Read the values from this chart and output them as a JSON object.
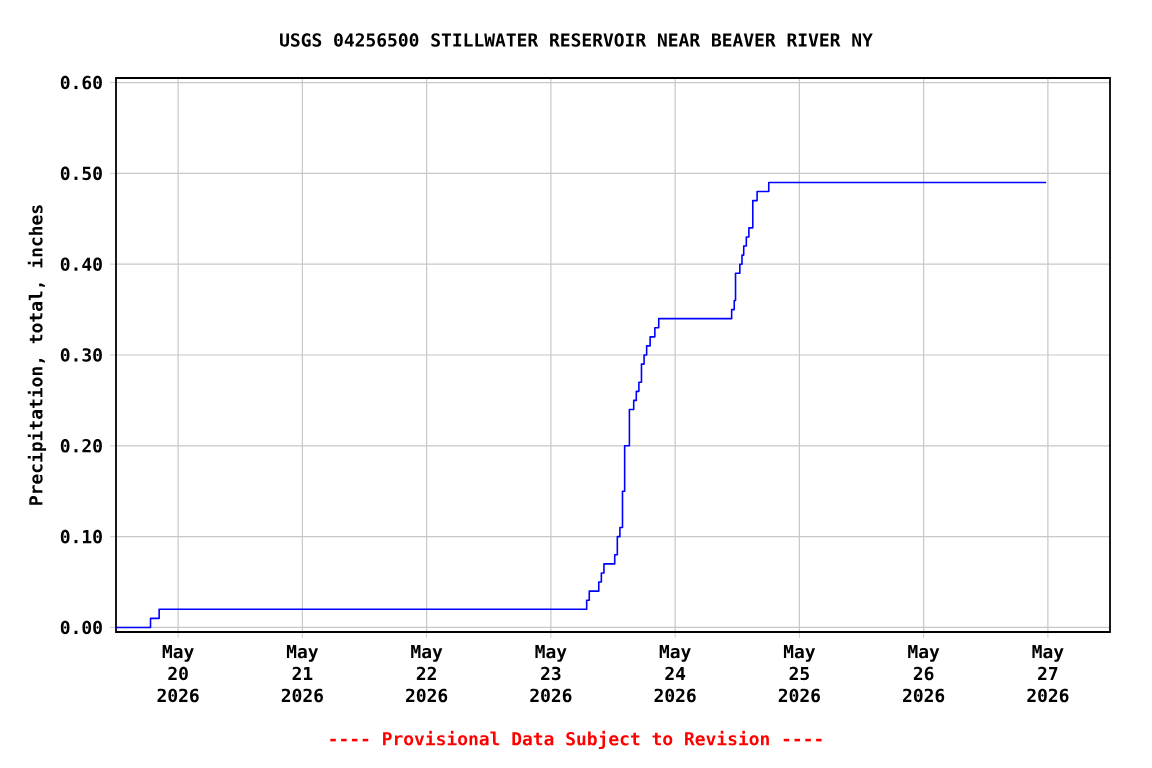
{
  "chart_data": {
    "type": "step",
    "title": "USGS 04256500 STILLWATER RESERVOIR NEAR BEAVER RIVER NY",
    "ylabel": "Precipitation, total, inches",
    "annotations": [
      "---- Provisional Data Subject to Revision ----"
    ],
    "x": [
      "2026-05-19T12:00",
      "2026-05-19T18:40",
      "2026-05-19T20:20",
      "2026-05-23T06:55",
      "2026-05-23T07:25",
      "2026-05-23T08:10",
      "2026-05-23T09:15",
      "2026-05-23T09:45",
      "2026-05-23T10:15",
      "2026-05-23T12:20",
      "2026-05-23T12:50",
      "2026-05-23T13:20",
      "2026-05-23T13:50",
      "2026-05-23T14:15",
      "2026-05-23T15:10",
      "2026-05-23T16:00",
      "2026-05-23T16:30",
      "2026-05-23T17:00",
      "2026-05-23T17:30",
      "2026-05-23T18:00",
      "2026-05-23T18:30",
      "2026-05-23T19:10",
      "2026-05-23T20:05",
      "2026-05-23T20:50",
      "2026-05-24T10:55",
      "2026-05-24T11:25",
      "2026-05-24T11:40",
      "2026-05-24T12:30",
      "2026-05-24T12:55",
      "2026-05-24T13:15",
      "2026-05-24T13:45",
      "2026-05-24T14:15",
      "2026-05-24T15:00",
      "2026-05-24T15:50",
      "2026-05-24T18:05",
      "2026-05-26T23:40"
    ],
    "series": [
      {
        "color": "#0000ff",
        "values": [
          0.0,
          0.01,
          0.02,
          0.03,
          0.04,
          0.04,
          0.05,
          0.06,
          0.07,
          0.08,
          0.1,
          0.11,
          0.15,
          0.2,
          0.24,
          0.25,
          0.26,
          0.27,
          0.29,
          0.3,
          0.31,
          0.32,
          0.33,
          0.34,
          0.35,
          0.36,
          0.39,
          0.4,
          0.41,
          0.42,
          0.43,
          0.44,
          0.47,
          0.48,
          0.49,
          0.49
        ]
      }
    ],
    "xlim": [
      "2026-05-19T12:00",
      "2026-05-27T12:00"
    ],
    "xticks": [
      {
        "value": "2026-05-20",
        "label": "May 20 2026"
      },
      {
        "value": "2026-05-21",
        "label": "May 21 2026"
      },
      {
        "value": "2026-05-22",
        "label": "May 22 2026"
      },
      {
        "value": "2026-05-23",
        "label": "May 23 2026"
      },
      {
        "value": "2026-05-24",
        "label": "May 24 2026"
      },
      {
        "value": "2026-05-25",
        "label": "May 25 2026"
      },
      {
        "value": "2026-05-26",
        "label": "May 26 2026"
      },
      {
        "value": "2026-05-27",
        "label": "May 27 2026"
      }
    ],
    "ylim": [
      -0.005,
      0.605
    ],
    "yticks": [
      {
        "value": 0,
        "label": "0.00"
      },
      {
        "value": 0.1,
        "label": "0.10"
      },
      {
        "value": 0.2,
        "label": "0.20"
      },
      {
        "value": 0.3,
        "label": "0.30"
      },
      {
        "value": 0.4,
        "label": "0.40"
      },
      {
        "value": 0.5,
        "label": "0.50"
      },
      {
        "value": 0.6,
        "label": "0.60"
      }
    ],
    "grid": true,
    "marker": "none",
    "line_style": "solid"
  }
}
